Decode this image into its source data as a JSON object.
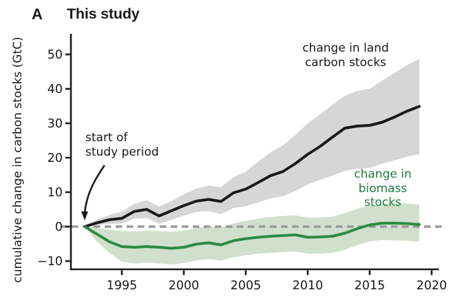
{
  "panel_label": "A",
  "title": "This study",
  "axes": {
    "y_label": "cumulative change in carbon stocks (GtC)",
    "y_ticks": [
      50,
      40,
      30,
      20,
      10,
      0,
      -10
    ],
    "x_ticks": [
      1995,
      2000,
      2005,
      2010,
      2015,
      2020
    ]
  },
  "annotations": {
    "start_note_line1": "start of",
    "start_note_line2": "study period",
    "land_label_line1": "change in land",
    "land_label_line2": "carbon stocks",
    "biomass_label_line1": "change in",
    "biomass_label_line2": "biomass stocks"
  },
  "colors": {
    "land_line": "#1a1a1a",
    "land_band": "#d6d6d6",
    "biomass_line": "#2e8b47",
    "biomass_band": "#8fb485",
    "biomass_label_text": "#1f7d3d",
    "zero_line": "#999999",
    "axis": "#1a1a1a"
  },
  "chart_data": {
    "type": "line",
    "title": "This study",
    "xlabel": "",
    "ylabel": "cumulative change in carbon stocks (GtC)",
    "xlim": [
      1990.9,
      2020.6
    ],
    "ylim": [
      -12.4,
      56
    ],
    "grid": false,
    "legend_position": "inline-annotations",
    "zero_line": {
      "value": 0,
      "style": "dashed",
      "color": "#999999"
    },
    "x": [
      1992,
      1993,
      1994,
      1995,
      1996,
      1997,
      1998,
      1999,
      2000,
      2001,
      2002,
      2003,
      2004,
      2005,
      2006,
      2007,
      2008,
      2009,
      2010,
      2011,
      2012,
      2013,
      2014,
      2015,
      2016,
      2017,
      2018,
      2019
    ],
    "series": [
      {
        "name": "change in land carbon stocks",
        "color": "#1a1a1a",
        "band_color": "#d6d6d6",
        "band_opacity": 1,
        "values": [
          0,
          1.1,
          2.0,
          2.4,
          4.4,
          5.0,
          3.1,
          4.6,
          6.1,
          7.4,
          7.9,
          7.3,
          9.8,
          10.9,
          12.8,
          14.8,
          16.0,
          18.3,
          21.0,
          23.3,
          26.0,
          28.6,
          29.2,
          29.4,
          30.3,
          31.8,
          33.5,
          34.9
        ],
        "band_low": [
          0,
          0.4,
          0.8,
          0.9,
          2.3,
          2.5,
          0.8,
          1.9,
          3.2,
          4.2,
          4.5,
          3.6,
          5.4,
          5.9,
          7.0,
          8.2,
          8.8,
          10.4,
          12.2,
          13.6,
          14.8,
          16.2,
          16.8,
          17.0,
          18.3,
          19.2,
          20.3,
          21.0
        ],
        "band_high": [
          0,
          2.0,
          3.4,
          4.4,
          6.6,
          7.7,
          5.8,
          7.4,
          9.4,
          11.0,
          11.9,
          11.5,
          14.3,
          16.0,
          18.9,
          21.6,
          23.6,
          26.6,
          30.0,
          32.6,
          35.4,
          38.0,
          39.4,
          40.0,
          42.4,
          44.6,
          46.9,
          48.7
        ]
      },
      {
        "name": "change in biomass stocks",
        "color": "#2e8b47",
        "band_color": "#8fb485",
        "band_opacity": 0.42,
        "values": [
          0,
          -2.2,
          -4.4,
          -5.8,
          -6.0,
          -5.8,
          -6.0,
          -6.3,
          -6.0,
          -5.1,
          -4.7,
          -5.3,
          -4.1,
          -3.5,
          -3.1,
          -2.8,
          -2.6,
          -2.4,
          -3.1,
          -3.0,
          -2.8,
          -1.9,
          -0.6,
          0.5,
          1.0,
          1.0,
          0.9,
          0.6
        ],
        "band_low": [
          0,
          -4.4,
          -7.6,
          -10.2,
          -10.7,
          -10.5,
          -10.7,
          -11.0,
          -10.6,
          -9.8,
          -9.4,
          -9.9,
          -8.9,
          -8.3,
          -7.9,
          -7.6,
          -7.4,
          -7.2,
          -7.9,
          -7.8,
          -7.6,
          -6.7,
          -5.4,
          -4.3,
          -3.9,
          -4.0,
          -4.1,
          -4.3
        ],
        "band_high": [
          0,
          -0.3,
          -0.9,
          -1.3,
          -1.4,
          -1.2,
          -1.3,
          -1.5,
          -1.2,
          -0.4,
          0.1,
          -0.3,
          0.9,
          1.7,
          2.3,
          2.8,
          3.1,
          3.3,
          2.6,
          2.7,
          2.9,
          3.9,
          5.2,
          6.1,
          6.6,
          6.8,
          6.7,
          6.4
        ]
      }
    ],
    "annotation_arrow": {
      "from_x": 1993.6,
      "from_y": 17.8,
      "to_x": 1992.0,
      "to_y": 1.2
    }
  }
}
